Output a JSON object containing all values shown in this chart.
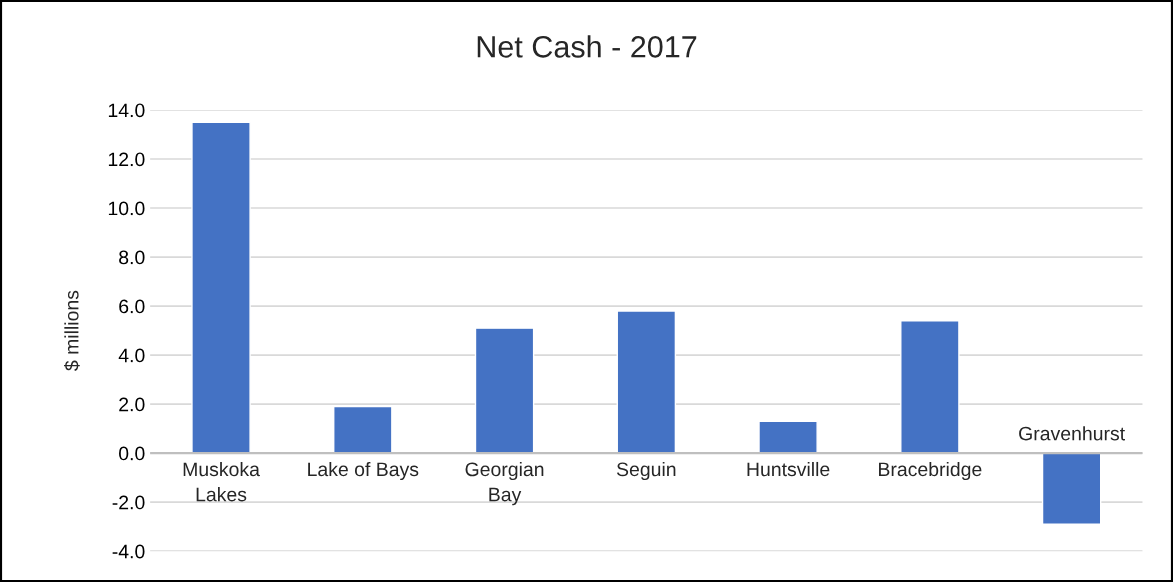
{
  "chart_data": {
    "type": "bar",
    "title": "Net Cash - 2017",
    "ylabel": "$ millions",
    "categories": [
      "Muskoka\nLakes",
      "Lake of Bays",
      "Georgian\nBay",
      "Seguin",
      "Huntsville",
      "Bracebridge",
      "Gravenhurst"
    ],
    "values": [
      13.5,
      1.9,
      5.1,
      5.8,
      1.3,
      5.4,
      -2.9
    ],
    "color": "#4472c4",
    "ylim": [
      -4,
      14
    ],
    "yticks": [
      {
        "value": -4,
        "label": "-4.0"
      },
      {
        "value": -2,
        "label": "-2.0"
      },
      {
        "value": 0,
        "label": "0.0"
      },
      {
        "value": 2,
        "label": "2.0"
      },
      {
        "value": 4,
        "label": "4.0"
      },
      {
        "value": 6,
        "label": "6.0"
      },
      {
        "value": 8,
        "label": "8.0"
      },
      {
        "value": 10,
        "label": "10.0"
      },
      {
        "value": 12,
        "label": "12.0"
      },
      {
        "value": 14,
        "label": "14.0"
      }
    ],
    "grid": "y"
  }
}
